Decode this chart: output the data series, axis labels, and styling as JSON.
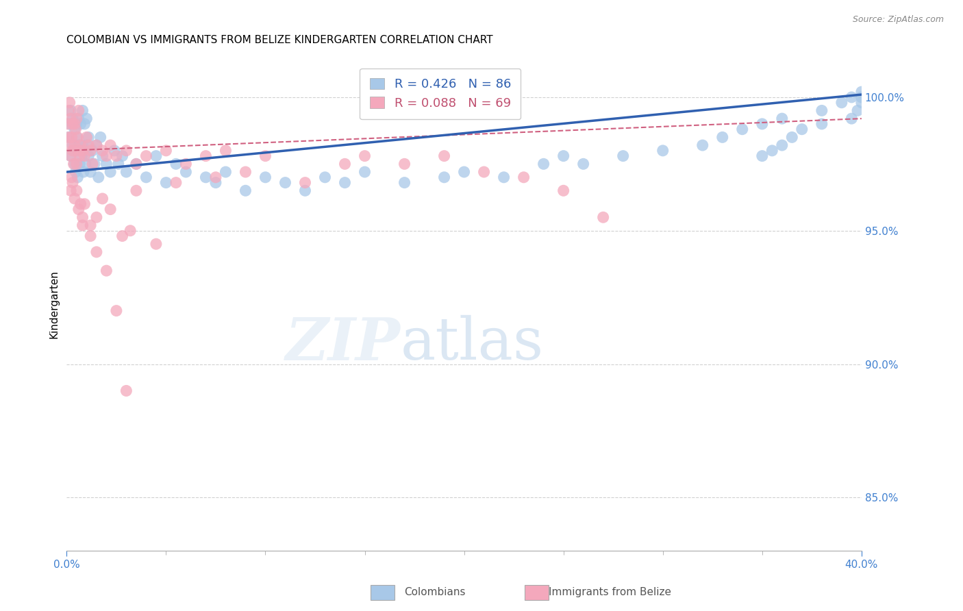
{
  "title": "COLOMBIAN VS IMMIGRANTS FROM BELIZE KINDERGARTEN CORRELATION CHART",
  "source": "Source: ZipAtlas.com",
  "ylabel": "Kindergarten",
  "x_min": 0.0,
  "x_max": 40.0,
  "y_min": 83.0,
  "y_max": 101.5,
  "right_yticks": [
    85.0,
    90.0,
    95.0,
    100.0
  ],
  "legend_blue_r": "R = 0.426",
  "legend_blue_n": "N = 86",
  "legend_pink_r": "R = 0.088",
  "legend_pink_n": "N = 69",
  "label_blue": "Colombians",
  "label_pink": "Immigrants from Belize",
  "blue_color": "#A8C8E8",
  "pink_color": "#F4A8BC",
  "blue_line_color": "#3060B0",
  "pink_line_color": "#D06080",
  "watermark_zip": "ZIP",
  "watermark_atlas": "atlas",
  "colombians_x": [
    0.1,
    0.15,
    0.2,
    0.2,
    0.3,
    0.3,
    0.35,
    0.4,
    0.4,
    0.45,
    0.5,
    0.5,
    0.55,
    0.6,
    0.6,
    0.65,
    0.7,
    0.7,
    0.75,
    0.8,
    0.8,
    0.85,
    0.9,
    0.9,
    0.95,
    1.0,
    1.0,
    1.1,
    1.1,
    1.2,
    1.3,
    1.4,
    1.5,
    1.6,
    1.7,
    1.8,
    2.0,
    2.2,
    2.4,
    2.6,
    2.8,
    3.0,
    3.5,
    4.0,
    4.5,
    5.0,
    5.5,
    6.0,
    7.0,
    7.5,
    8.0,
    9.0,
    10.0,
    11.0,
    12.0,
    13.0,
    14.0,
    15.0,
    17.0,
    19.0,
    20.0,
    22.0,
    24.0,
    25.0,
    26.0,
    28.0,
    30.0,
    32.0,
    33.0,
    34.0,
    35.0,
    36.0,
    38.0,
    39.0,
    39.5,
    40.0,
    40.0,
    40.0,
    39.8,
    39.5,
    38.0,
    37.0,
    36.5,
    36.0,
    35.5,
    35.0
  ],
  "colombians_y": [
    98.5,
    99.0,
    97.8,
    99.5,
    98.2,
    99.2,
    98.0,
    97.5,
    98.8,
    97.2,
    98.5,
    99.0,
    97.0,
    98.2,
    99.2,
    97.5,
    98.0,
    99.0,
    97.8,
    98.2,
    99.5,
    97.2,
    98.0,
    99.0,
    97.5,
    98.2,
    99.2,
    97.8,
    98.5,
    97.2,
    98.0,
    97.5,
    98.2,
    97.0,
    98.5,
    97.8,
    97.5,
    97.2,
    98.0,
    97.5,
    97.8,
    97.2,
    97.5,
    97.0,
    97.8,
    96.8,
    97.5,
    97.2,
    97.0,
    96.8,
    97.2,
    96.5,
    97.0,
    96.8,
    96.5,
    97.0,
    96.8,
    97.2,
    96.8,
    97.0,
    97.2,
    97.0,
    97.5,
    97.8,
    97.5,
    97.8,
    98.0,
    98.2,
    98.5,
    98.8,
    99.0,
    99.2,
    99.5,
    99.8,
    100.0,
    100.2,
    100.0,
    99.8,
    99.5,
    99.2,
    99.0,
    98.8,
    98.5,
    98.2,
    98.0,
    97.8
  ],
  "belize_x": [
    0.05,
    0.1,
    0.1,
    0.15,
    0.15,
    0.2,
    0.2,
    0.25,
    0.3,
    0.3,
    0.35,
    0.4,
    0.4,
    0.45,
    0.5,
    0.5,
    0.55,
    0.6,
    0.6,
    0.65,
    0.7,
    0.8,
    0.9,
    1.0,
    1.1,
    1.2,
    1.3,
    1.5,
    1.8,
    2.0,
    2.2,
    2.5,
    3.0,
    3.5,
    4.0,
    5.0,
    6.0,
    7.0,
    8.0,
    9.0,
    10.0,
    12.0,
    14.0,
    15.0,
    17.0,
    19.0,
    21.0,
    23.0,
    25.0,
    27.0,
    3.2,
    4.5,
    1.5,
    2.8,
    0.8,
    0.7,
    0.6,
    0.5,
    0.4,
    0.3,
    0.25,
    0.2,
    1.2,
    0.9,
    1.8,
    2.2,
    3.5,
    5.5,
    7.5
  ],
  "belize_y": [
    99.0,
    98.5,
    99.5,
    98.2,
    99.8,
    97.8,
    99.2,
    98.5,
    98.0,
    99.0,
    97.5,
    98.2,
    99.0,
    98.8,
    97.5,
    99.2,
    98.5,
    98.0,
    99.5,
    97.8,
    98.2,
    98.0,
    97.8,
    98.5,
    98.2,
    98.0,
    97.5,
    98.2,
    98.0,
    97.8,
    98.2,
    97.8,
    98.0,
    97.5,
    97.8,
    98.0,
    97.5,
    97.8,
    98.0,
    97.2,
    97.8,
    96.8,
    97.5,
    97.8,
    97.5,
    97.8,
    97.2,
    97.0,
    96.5,
    95.5,
    95.0,
    94.5,
    95.5,
    94.8,
    95.5,
    96.0,
    95.8,
    96.5,
    96.2,
    96.8,
    97.0,
    96.5,
    95.2,
    96.0,
    96.2,
    95.8,
    96.5,
    96.8,
    97.0
  ],
  "belize_outliers_x": [
    0.8,
    1.2,
    1.5,
    2.0,
    2.5,
    3.0
  ],
  "belize_outliers_y": [
    95.2,
    94.8,
    94.2,
    93.5,
    92.0,
    89.0
  ]
}
